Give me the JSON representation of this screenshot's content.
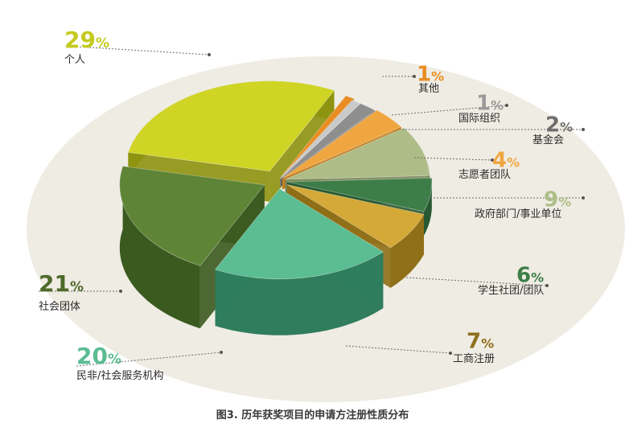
{
  "caption": "图3. 历年获奖项目的申请方注册性质分布",
  "chart_data": {
    "type": "pie",
    "title": "图3. 历年获奖项目的申请方注册性质分布",
    "slices": [
      {
        "label": "个人",
        "value": 29,
        "pct_text": "29",
        "color": "#cfd425"
      },
      {
        "label": "其他",
        "value": 1,
        "pct_text": "1",
        "color": "#e98d22"
      },
      {
        "label": "国际组织",
        "value": 1,
        "pct_text": "1",
        "color": "#c9c9c9"
      },
      {
        "label": "基金会",
        "value": 2,
        "pct_text": "2",
        "color": "#8e8e8e"
      },
      {
        "label": "志愿者团队",
        "value": 4,
        "pct_text": "4",
        "color": "#f0a640"
      },
      {
        "label": "政府部门/事业单位",
        "value": 9,
        "pct_text": "9",
        "color": "#aebd88"
      },
      {
        "label": "学生社团/团队",
        "value": 6,
        "pct_text": "6",
        "color": "#3d7d48"
      },
      {
        "label": "工商注册",
        "value": 7,
        "pct_text": "7",
        "color": "#d4a937"
      },
      {
        "label": "民非/社会服务机构",
        "value": 20,
        "pct_text": "20",
        "color": "#5bbd92"
      },
      {
        "label": "社会团体",
        "value": 21,
        "pct_text": "21",
        "color": "#5e8436"
      }
    ],
    "percent_sign": "%"
  }
}
